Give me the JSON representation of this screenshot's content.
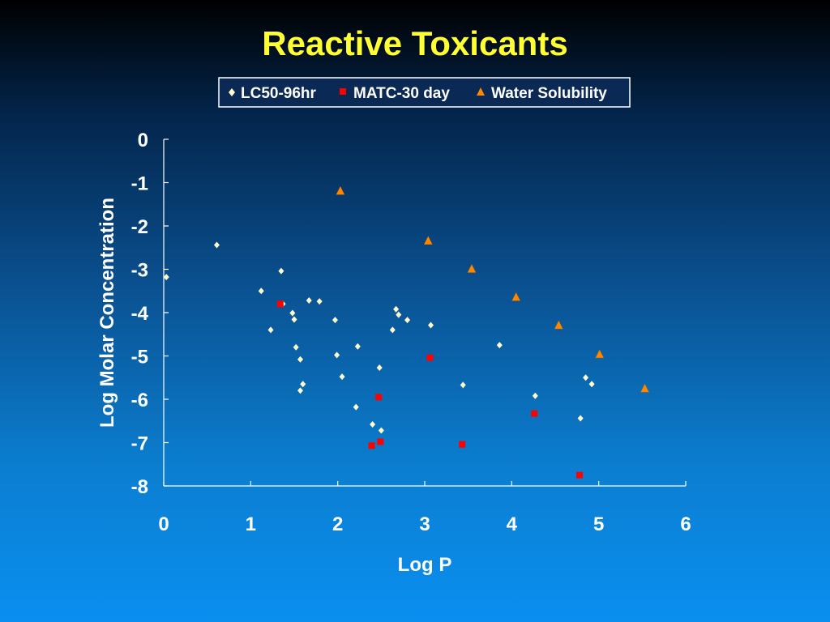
{
  "slide": {
    "title": "Reactive Toxicants"
  },
  "chart_data": {
    "type": "scatter",
    "title": "",
    "xlabel": "Log P",
    "ylabel": "Log Molar Concentration",
    "xlim": [
      0,
      6
    ],
    "ylim": [
      -8,
      0
    ],
    "xticks": [
      0,
      1,
      2,
      3,
      4,
      5,
      6
    ],
    "yticks": [
      0,
      -1,
      -2,
      -3,
      -4,
      -5,
      -6,
      -7,
      -8
    ],
    "grid": false,
    "legend_position": "top",
    "series": [
      {
        "name": "LC50-96hr",
        "marker": "diamond",
        "color": "#ffffcc",
        "points": [
          [
            0.03,
            -3.18
          ],
          [
            0.61,
            -2.44
          ],
          [
            1.12,
            -3.5
          ],
          [
            1.23,
            -4.4
          ],
          [
            1.35,
            -3.04
          ],
          [
            1.37,
            -3.8
          ],
          [
            1.48,
            -4.01
          ],
          [
            1.5,
            -4.16
          ],
          [
            1.52,
            -4.8
          ],
          [
            1.57,
            -5.08
          ],
          [
            1.57,
            -5.8
          ],
          [
            1.6,
            -5.65
          ],
          [
            1.67,
            -3.72
          ],
          [
            1.79,
            -3.74
          ],
          [
            1.97,
            -4.17
          ],
          [
            1.99,
            -4.98
          ],
          [
            2.05,
            -5.48
          ],
          [
            2.21,
            -6.18
          ],
          [
            2.23,
            -4.78
          ],
          [
            2.4,
            -6.58
          ],
          [
            2.48,
            -5.27
          ],
          [
            2.5,
            -6.72
          ],
          [
            2.63,
            -4.4
          ],
          [
            2.67,
            -3.92
          ],
          [
            2.7,
            -4.05
          ],
          [
            2.8,
            -4.17
          ],
          [
            3.07,
            -4.29
          ],
          [
            3.44,
            -5.67
          ],
          [
            3.86,
            -4.75
          ],
          [
            4.27,
            -5.92
          ],
          [
            4.79,
            -6.44
          ],
          [
            4.85,
            -5.5
          ],
          [
            4.92,
            -5.65
          ]
        ]
      },
      {
        "name": "MATC-30 day",
        "marker": "square",
        "color": "#ff0000",
        "points": [
          [
            1.34,
            -3.8
          ],
          [
            2.39,
            -7.07
          ],
          [
            2.47,
            -5.95
          ],
          [
            2.49,
            -6.98
          ],
          [
            3.06,
            -5.04
          ],
          [
            3.43,
            -7.04
          ],
          [
            4.26,
            -6.33
          ],
          [
            4.78,
            -7.75
          ]
        ]
      },
      {
        "name": "Water Solubility",
        "marker": "triangle",
        "color": "#ff8800",
        "points": [
          [
            2.03,
            -1.2
          ],
          [
            3.04,
            -2.35
          ],
          [
            3.54,
            -3.0
          ],
          [
            4.05,
            -3.65
          ],
          [
            4.54,
            -4.3
          ],
          [
            5.01,
            -4.97
          ],
          [
            5.53,
            -5.76
          ]
        ]
      }
    ]
  }
}
